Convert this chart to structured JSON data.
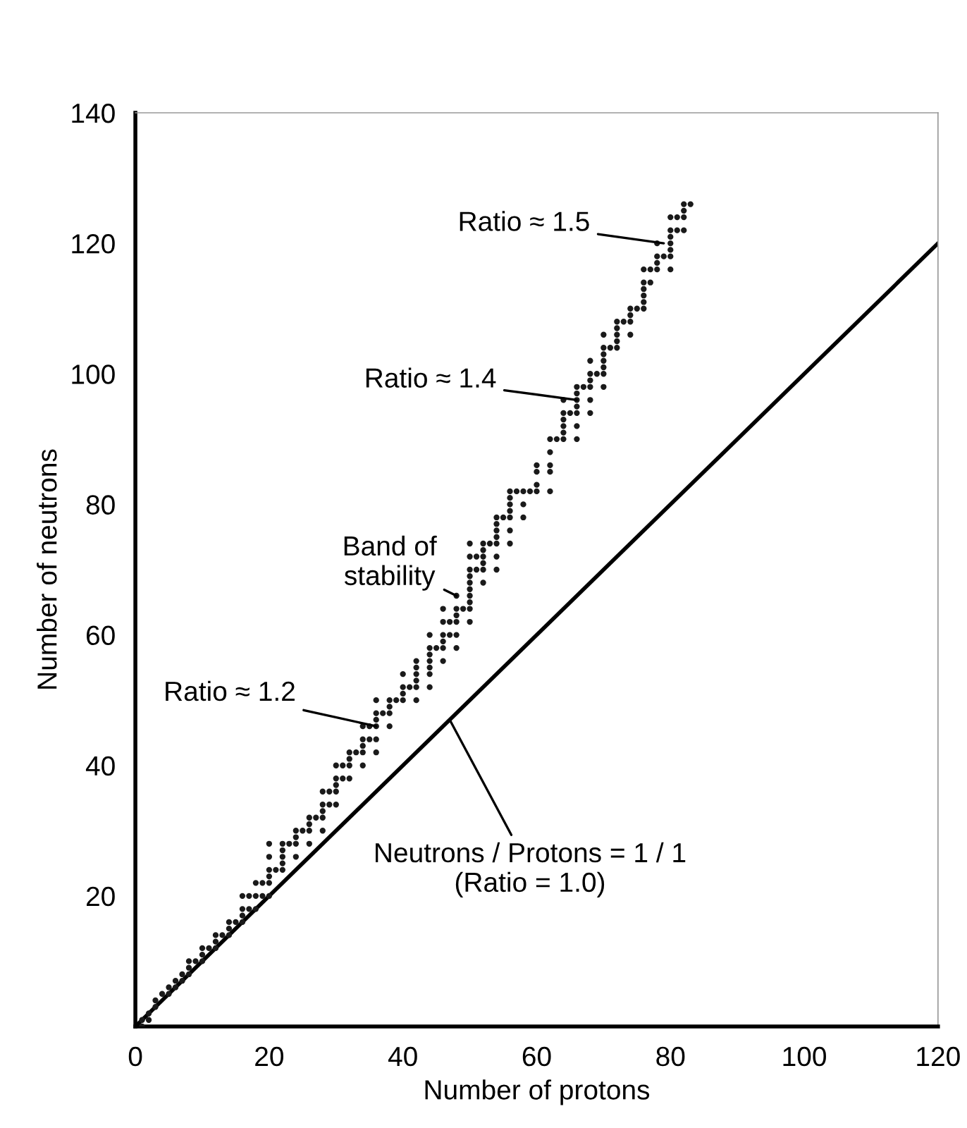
{
  "chart_data": {
    "type": "scatter",
    "xlabel": "Number of protons",
    "ylabel": "Number of neutrons",
    "xlim": [
      0,
      120
    ],
    "ylim": [
      0,
      140
    ],
    "xticks": [
      0,
      20,
      40,
      60,
      80,
      100,
      120
    ],
    "yticks": [
      20,
      40,
      60,
      80,
      100,
      120,
      140
    ],
    "grid": false,
    "legend": false,
    "marker": "circle",
    "series": [
      {
        "color": "#1a1a1a",
        "x": [
          1,
          1,
          2,
          2,
          3,
          3,
          4,
          5,
          5,
          6,
          6,
          7,
          7,
          8,
          8,
          8,
          9,
          10,
          10,
          10,
          11,
          12,
          12,
          12,
          13,
          14,
          14,
          14,
          15,
          16,
          16,
          16,
          16,
          17,
          17,
          18,
          18,
          18,
          19,
          19,
          20,
          20,
          20,
          20,
          20,
          20,
          21,
          22,
          22,
          22,
          22,
          22,
          23,
          24,
          24,
          24,
          24,
          25,
          26,
          26,
          26,
          26,
          27,
          28,
          28,
          28,
          28,
          28,
          29,
          29,
          30,
          30,
          30,
          30,
          30,
          31,
          31,
          32,
          32,
          32,
          32,
          33,
          34,
          34,
          34,
          34,
          34,
          35,
          35,
          36,
          36,
          36,
          36,
          36,
          36,
          37,
          38,
          38,
          38,
          38,
          39,
          40,
          40,
          40,
          40,
          41,
          42,
          42,
          42,
          42,
          42,
          42,
          44,
          44,
          44,
          44,
          44,
          44,
          44,
          45,
          46,
          46,
          46,
          46,
          46,
          46,
          47,
          47,
          48,
          48,
          48,
          48,
          48,
          48,
          49,
          50,
          50,
          50,
          50,
          50,
          50,
          50,
          50,
          50,
          50,
          51,
          51,
          52,
          52,
          52,
          52,
          52,
          52,
          53,
          54,
          54,
          54,
          54,
          54,
          54,
          54,
          55,
          56,
          56,
          56,
          56,
          56,
          56,
          56,
          57,
          58,
          58,
          58,
          59,
          60,
          60,
          60,
          60,
          62,
          62,
          62,
          62,
          62,
          63,
          64,
          64,
          64,
          64,
          64,
          64,
          65,
          66,
          66,
          66,
          66,
          66,
          66,
          66,
          67,
          68,
          68,
          68,
          68,
          68,
          68,
          69,
          70,
          70,
          70,
          70,
          70,
          70,
          70,
          71,
          72,
          72,
          72,
          72,
          72,
          73,
          74,
          74,
          74,
          74,
          75,
          76,
          76,
          76,
          76,
          76,
          76,
          77,
          77,
          78,
          78,
          78,
          78,
          79,
          80,
          80,
          80,
          80,
          80,
          80,
          80,
          81,
          81,
          82,
          82,
          82,
          82,
          83
        ],
        "values": [
          0,
          1,
          1,
          2,
          3,
          4,
          5,
          5,
          6,
          6,
          7,
          7,
          8,
          8,
          9,
          10,
          10,
          10,
          11,
          12,
          12,
          12,
          13,
          14,
          14,
          14,
          15,
          16,
          16,
          16,
          17,
          18,
          20,
          18,
          20,
          18,
          20,
          22,
          20,
          22,
          20,
          22,
          23,
          24,
          26,
          28,
          24,
          24,
          25,
          26,
          27,
          28,
          28,
          26,
          28,
          29,
          30,
          30,
          28,
          30,
          31,
          32,
          32,
          30,
          32,
          33,
          34,
          36,
          34,
          36,
          34,
          36,
          37,
          38,
          40,
          38,
          40,
          38,
          40,
          41,
          42,
          42,
          40,
          42,
          43,
          44,
          46,
          44,
          46,
          42,
          44,
          46,
          47,
          48,
          50,
          48,
          46,
          48,
          49,
          50,
          50,
          50,
          51,
          52,
          54,
          52,
          50,
          52,
          53,
          54,
          55,
          56,
          52,
          54,
          55,
          56,
          57,
          58,
          60,
          58,
          56,
          58,
          59,
          60,
          62,
          64,
          60,
          62,
          58,
          60,
          62,
          63,
          64,
          66,
          64,
          62,
          64,
          65,
          66,
          67,
          68,
          69,
          70,
          72,
          74,
          70,
          72,
          68,
          70,
          71,
          72,
          73,
          74,
          74,
          70,
          72,
          74,
          75,
          76,
          77,
          78,
          78,
          74,
          76,
          78,
          79,
          80,
          81,
          82,
          82,
          78,
          80,
          82,
          82,
          82,
          83,
          85,
          86,
          82,
          85,
          86,
          88,
          90,
          90,
          90,
          91,
          92,
          93,
          94,
          96,
          94,
          90,
          92,
          94,
          95,
          96,
          97,
          98,
          98,
          94,
          96,
          98,
          99,
          100,
          102,
          100,
          98,
          100,
          101,
          102,
          103,
          104,
          106,
          104,
          104,
          105,
          106,
          107,
          108,
          108,
          106,
          108,
          109,
          110,
          110,
          110,
          111,
          112,
          113,
          114,
          116,
          114,
          116,
          116,
          117,
          118,
          120,
          118,
          116,
          118,
          119,
          120,
          121,
          122,
          124,
          122,
          124,
          122,
          124,
          125,
          126,
          126
        ]
      },
      {
        "type": "line",
        "color": "#000000",
        "line_style": "solid",
        "marker": "none",
        "x": [
          0,
          120
        ],
        "values": [
          0,
          120
        ]
      }
    ],
    "annotations": [
      {
        "text": "Ratio ≈ 1.5",
        "x": 79,
        "y": 120
      },
      {
        "text": "Ratio ≈ 1.4",
        "x": 66,
        "y": 96
      },
      {
        "text": "Band of\nstability",
        "x": 48,
        "y": 66
      },
      {
        "text": "Ratio ≈ 1.2",
        "x": 36,
        "y": 46
      },
      {
        "text": "Neutrons / Protons = 1 / 1\n(Ratio = 1.0)",
        "x": 47,
        "y": 47
      }
    ]
  }
}
